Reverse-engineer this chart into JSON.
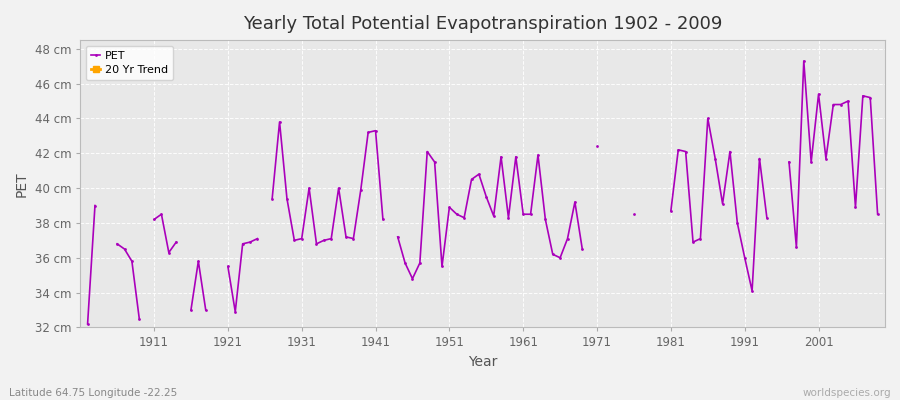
{
  "title": "Yearly Total Potential Evapotranspiration 1902 - 2009",
  "xlabel": "Year",
  "ylabel": "PET",
  "subtitle_left": "Latitude 64.75 Longitude -22.25",
  "subtitle_right": "worldspecies.org",
  "ylim": [
    32,
    48.5
  ],
  "ytick_labels": [
    "32 cm",
    "34 cm",
    "36 cm",
    "38 cm",
    "40 cm",
    "42 cm",
    "44 cm",
    "46 cm",
    "48 cm"
  ],
  "ytick_values": [
    32,
    34,
    36,
    38,
    40,
    42,
    44,
    46,
    48
  ],
  "xtick_values": [
    1911,
    1921,
    1931,
    1941,
    1951,
    1961,
    1971,
    1981,
    1991,
    2001
  ],
  "pet_color": "#aa00bb",
  "trend_color": "#ffa500",
  "bg_color": "#f2f2f2",
  "plot_bg_color": "#e8e8e8",
  "legend_labels": [
    "PET",
    "20 Yr Trend"
  ],
  "years": [
    1902,
    1903,
    1906,
    1907,
    1908,
    1909,
    1911,
    1912,
    1913,
    1914,
    1916,
    1917,
    1918,
    1921,
    1922,
    1923,
    1924,
    1925,
    1927,
    1928,
    1929,
    1930,
    1931,
    1932,
    1933,
    1934,
    1935,
    1936,
    1937,
    1938,
    1939,
    1940,
    1941,
    1942,
    1944,
    1945,
    1946,
    1947,
    1948,
    1949,
    1950,
    1951,
    1952,
    1953,
    1954,
    1955,
    1956,
    1957,
    1958,
    1959,
    1960,
    1961,
    1962,
    1963,
    1964,
    1965,
    1966,
    1967,
    1968,
    1969,
    1971,
    1976,
    1981,
    1982,
    1983,
    1984,
    1985,
    1986,
    1987,
    1988,
    1989,
    1990,
    1991,
    1992,
    1993,
    1994,
    1997,
    1998,
    1999,
    2000,
    2001,
    2002,
    2003,
    2004,
    2005,
    2006,
    2007,
    2008,
    2009
  ],
  "pet_values": [
    32.2,
    39.0,
    36.8,
    36.5,
    35.8,
    32.5,
    38.2,
    38.5,
    36.3,
    36.9,
    33.0,
    35.8,
    33.0,
    35.5,
    32.9,
    36.8,
    36.9,
    37.1,
    39.4,
    43.8,
    39.4,
    37.0,
    37.1,
    40.0,
    36.8,
    37.0,
    37.1,
    40.0,
    37.2,
    37.1,
    39.9,
    43.2,
    43.3,
    38.2,
    37.2,
    35.7,
    34.8,
    35.7,
    42.1,
    41.5,
    35.5,
    38.9,
    38.5,
    38.3,
    40.5,
    40.8,
    39.5,
    38.4,
    41.8,
    38.3,
    41.8,
    38.5,
    38.5,
    41.9,
    38.2,
    36.2,
    36.0,
    37.1,
    39.2,
    36.5,
    42.4,
    38.5,
    38.7,
    42.2,
    42.1,
    36.9,
    37.1,
    44.0,
    41.7,
    39.1,
    42.1,
    38.0,
    36.0,
    34.1,
    41.7,
    38.3,
    41.5,
    36.6,
    47.3,
    41.5,
    45.4,
    41.7,
    44.8,
    44.8,
    45.0,
    38.9,
    45.3,
    45.2,
    38.5
  ],
  "all_years": [
    1902,
    1903,
    1904,
    1905,
    1906,
    1907,
    1908,
    1909,
    1910,
    1911,
    1912,
    1913,
    1914,
    1915,
    1916,
    1917,
    1918,
    1919,
    1920,
    1921,
    1922,
    1923,
    1924,
    1925,
    1926,
    1927,
    1928,
    1929,
    1930,
    1931,
    1932,
    1933,
    1934,
    1935,
    1936,
    1937,
    1938,
    1939,
    1940,
    1941,
    1942,
    1943,
    1944,
    1945,
    1946,
    1947,
    1948,
    1949,
    1950,
    1951,
    1952,
    1953,
    1954,
    1955,
    1956,
    1957,
    1958,
    1959,
    1960,
    1961,
    1962,
    1963,
    1964,
    1965,
    1966,
    1967,
    1968,
    1969,
    1970,
    1971,
    1972,
    1973,
    1974,
    1975,
    1976,
    1977,
    1978,
    1979,
    1980,
    1981,
    1982,
    1983,
    1984,
    1985,
    1986,
    1987,
    1988,
    1989,
    1990,
    1991,
    1992,
    1993,
    1994,
    1995,
    1996,
    1997,
    1998,
    1999,
    2000,
    2001,
    2002,
    2003,
    2004,
    2005,
    2006,
    2007,
    2008,
    2009
  ]
}
